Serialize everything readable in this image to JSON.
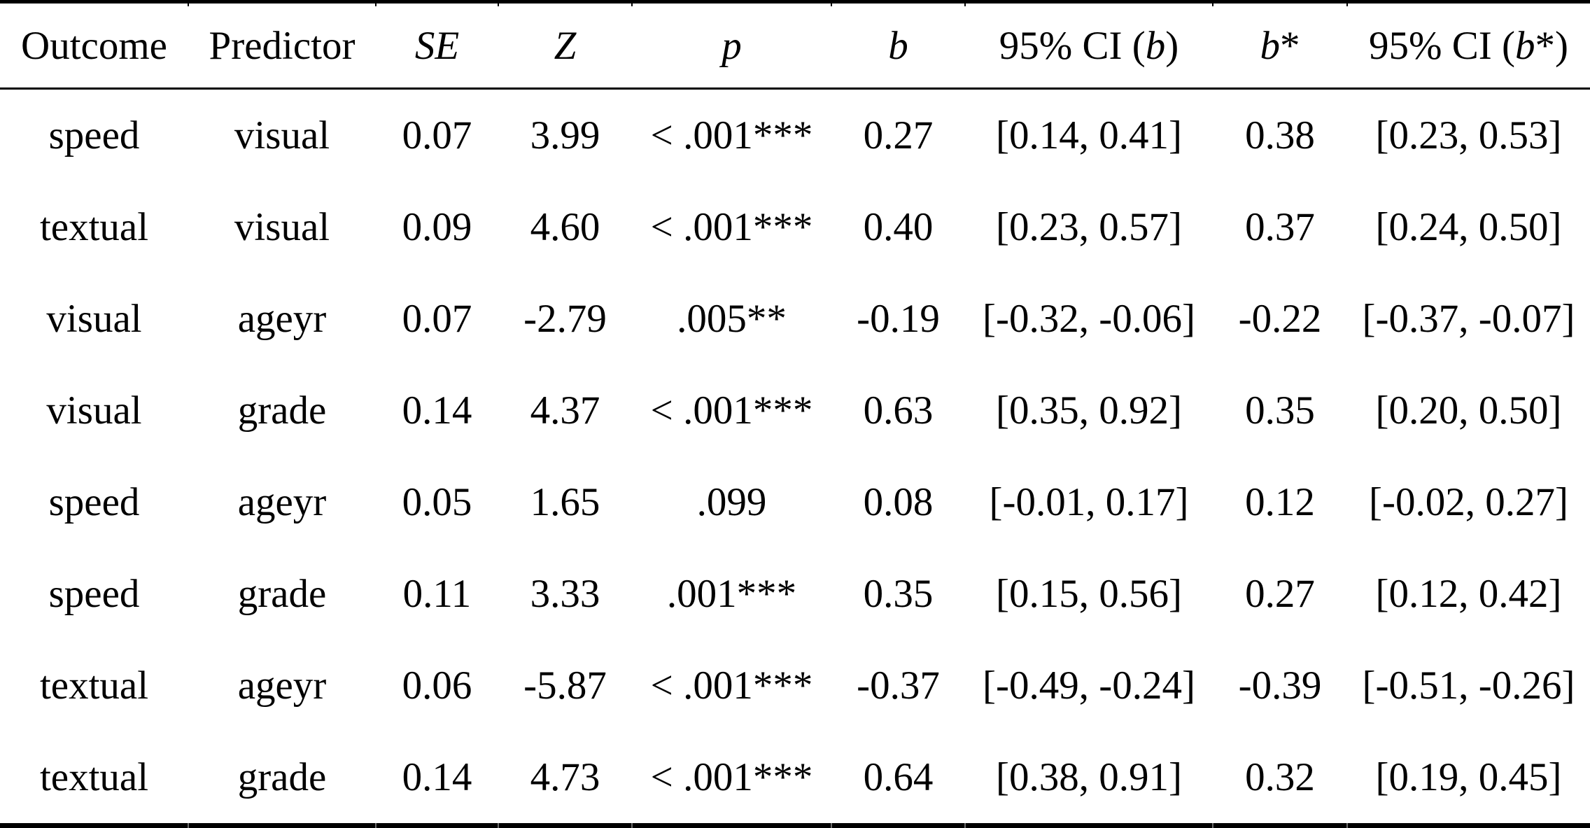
{
  "table": {
    "headers": [
      {
        "pre": "Outcome",
        "it": "",
        "post": ""
      },
      {
        "pre": "Predictor",
        "it": "",
        "post": ""
      },
      {
        "pre": "",
        "it": "SE",
        "post": ""
      },
      {
        "pre": "",
        "it": "Z",
        "post": ""
      },
      {
        "pre": "",
        "it": "p",
        "post": ""
      },
      {
        "pre": "",
        "it": "b",
        "post": ""
      },
      {
        "pre": "95% CI (",
        "it": "b",
        "post": ")"
      },
      {
        "pre": "",
        "it": "b",
        "post": "*"
      },
      {
        "pre": "95% CI (",
        "it": "b",
        "post": "*)"
      }
    ],
    "rows": [
      [
        "speed",
        "visual",
        "0.07",
        "3.99",
        "< .001***",
        "0.27",
        "[0.14, 0.41]",
        "0.38",
        "[0.23, 0.53]"
      ],
      [
        "textual",
        "visual",
        "0.09",
        "4.60",
        "< .001***",
        "0.40",
        "[0.23, 0.57]",
        "0.37",
        "[0.24, 0.50]"
      ],
      [
        "visual",
        "ageyr",
        "0.07",
        "-2.79",
        ".005**",
        "-0.19",
        "[-0.32, -0.06]",
        "-0.22",
        "[-0.37, -0.07]"
      ],
      [
        "visual",
        "grade",
        "0.14",
        "4.37",
        "< .001***",
        "0.63",
        "[0.35, 0.92]",
        "0.35",
        "[0.20, 0.50]"
      ],
      [
        "speed",
        "ageyr",
        "0.05",
        "1.65",
        ".099",
        "0.08",
        "[-0.01, 0.17]",
        "0.12",
        "[-0.02, 0.27]"
      ],
      [
        "speed",
        "grade",
        "0.11",
        "3.33",
        ".001***",
        "0.35",
        "[0.15, 0.56]",
        "0.27",
        "[0.12, 0.42]"
      ],
      [
        "textual",
        "ageyr",
        "0.06",
        "-5.87",
        "< .001***",
        "-0.37",
        "[-0.49, -0.24]",
        "-0.39",
        "[-0.51, -0.26]"
      ],
      [
        "textual",
        "grade",
        "0.14",
        "4.73",
        "< .001***",
        "0.64",
        "[0.38, 0.91]",
        "0.32",
        "[0.19, 0.45]"
      ]
    ],
    "text_color": "#000000",
    "rule_color": "#000000"
  }
}
